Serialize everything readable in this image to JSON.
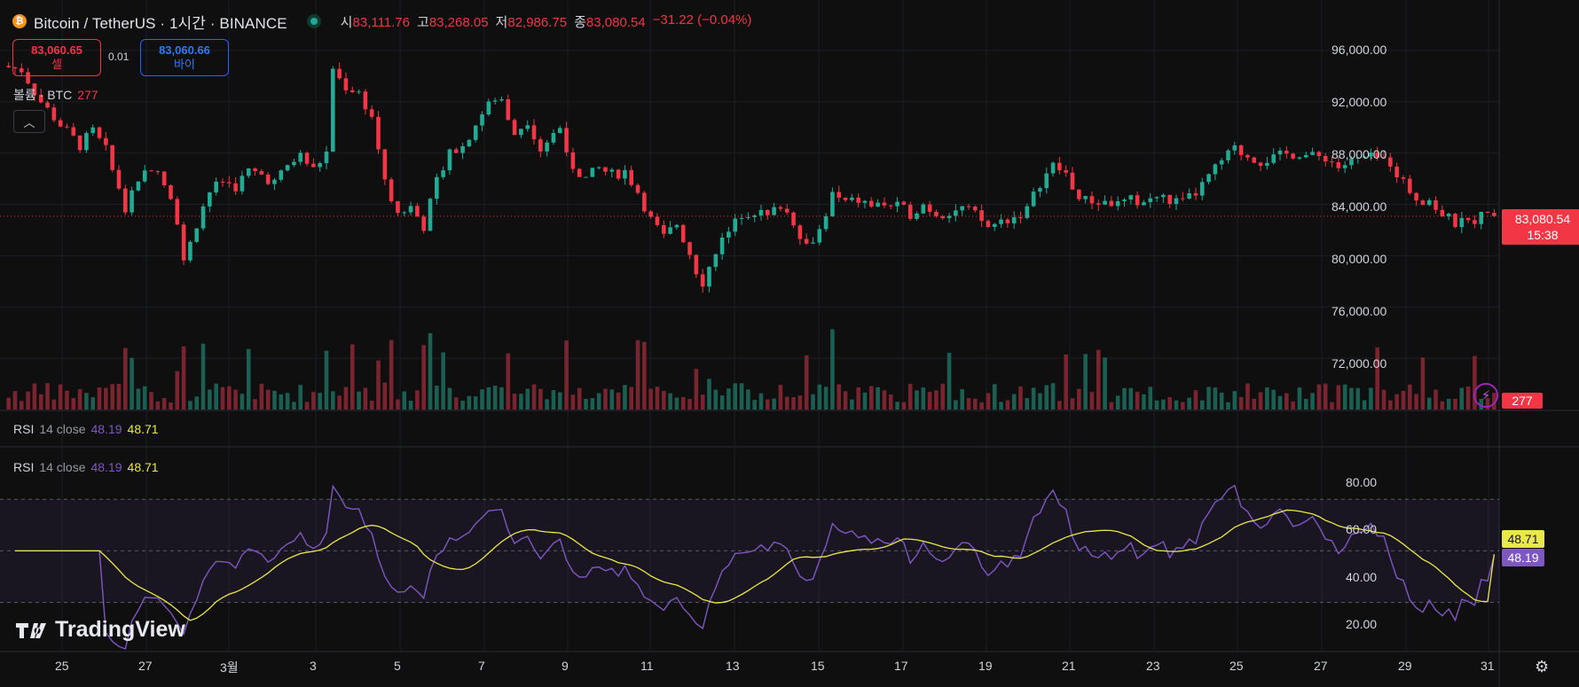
{
  "header": {
    "symbol": "Bitcoin / TetherUS · 1시간 · BINANCE",
    "ohlc": [
      {
        "k": "시",
        "v": "83,111.76"
      },
      {
        "k": "고",
        "v": "83,268.05"
      },
      {
        "k": "저",
        "v": "82,986.75"
      },
      {
        "k": "종",
        "v": "83,080.54"
      }
    ],
    "change": "−31.22 (−0.04%)"
  },
  "trade": {
    "sell_price": "83,060.65",
    "sell_label": "셀",
    "spread": "0.01",
    "buy_price": "83,060.66",
    "buy_label": "바이"
  },
  "volume_legend": {
    "label": "볼륨 · BTC",
    "value": "277"
  },
  "price_axis": [
    "96,000.00",
    "92,000.00",
    "88,000.00",
    "84,000.00",
    "80,000.00",
    "76,000.00",
    "72,000.00"
  ],
  "last_price": {
    "price": "83,080.54",
    "countdown": "15:38"
  },
  "volume_tag": "277",
  "rsi_panes": [
    {
      "name": "RSI",
      "params": "14 close",
      "rsi": "48.19",
      "ma": "48.71"
    },
    {
      "name": "RSI",
      "params": "14 close",
      "rsi": "48.19",
      "ma": "48.71"
    }
  ],
  "rsi_axis": [
    "80.00",
    "60.00",
    "40.00",
    "20.00"
  ],
  "rsi_tags": {
    "ma": "48.71",
    "rsi": "48.19"
  },
  "time_axis": [
    "25",
    "27",
    "3월",
    "3",
    "5",
    "7",
    "9",
    "11",
    "13",
    "15",
    "17",
    "19",
    "21",
    "23",
    "25",
    "27",
    "29",
    "31"
  ],
  "brand": "TradingView",
  "colors": {
    "up": "#22ab94",
    "down": "#f23645",
    "rsi": "#7e57c2",
    "rsi_ma": "#e9e84b",
    "background": "#0f0f0f"
  },
  "chart_data": {
    "type": "candlestick",
    "interval": "1h",
    "price_range": [
      68000,
      98000
    ],
    "path": [
      [
        0,
        94800
      ],
      [
        3,
        94500
      ],
      [
        6,
        92000
      ],
      [
        9,
        90200
      ],
      [
        12,
        88600
      ],
      [
        14,
        89700
      ],
      [
        16,
        88200
      ],
      [
        19,
        83500
      ],
      [
        21,
        86000
      ],
      [
        23,
        87000
      ],
      [
        25,
        85500
      ],
      [
        27,
        82800
      ],
      [
        28,
        79400
      ],
      [
        30,
        82500
      ],
      [
        32,
        85000
      ],
      [
        34,
        85800
      ],
      [
        36,
        85400
      ],
      [
        38,
        86600
      ],
      [
        40,
        86300
      ],
      [
        42,
        85700
      ],
      [
        44,
        87000
      ],
      [
        46,
        87800
      ],
      [
        48,
        86700
      ],
      [
        50,
        88000
      ],
      [
        51,
        94300
      ],
      [
        53,
        93200
      ],
      [
        55,
        92700
      ],
      [
        57,
        90800
      ],
      [
        59,
        86000
      ],
      [
        61,
        83300
      ],
      [
        63,
        83800
      ],
      [
        65,
        82300
      ],
      [
        67,
        85900
      ],
      [
        69,
        88200
      ],
      [
        71,
        88500
      ],
      [
        73,
        90300
      ],
      [
        75,
        91800
      ],
      [
        77,
        92200
      ],
      [
        79,
        89500
      ],
      [
        81,
        90600
      ],
      [
        83,
        88300
      ],
      [
        85,
        89500
      ],
      [
        86,
        90000
      ],
      [
        88,
        87000
      ],
      [
        90,
        86000
      ],
      [
        92,
        86800
      ],
      [
        94,
        86300
      ],
      [
        96,
        86600
      ],
      [
        98,
        85000
      ],
      [
        100,
        82800
      ],
      [
        102,
        81400
      ],
      [
        104,
        82500
      ],
      [
        106,
        80200
      ],
      [
        108,
        77500
      ],
      [
        110,
        80500
      ],
      [
        112,
        81800
      ],
      [
        114,
        83300
      ],
      [
        116,
        83500
      ],
      [
        118,
        83000
      ],
      [
        120,
        84000
      ],
      [
        122,
        82700
      ],
      [
        124,
        80800
      ],
      [
        126,
        82000
      ],
      [
        128,
        84700
      ],
      [
        130,
        84100
      ],
      [
        132,
        84300
      ],
      [
        134,
        83900
      ],
      [
        136,
        84000
      ],
      [
        138,
        83800
      ],
      [
        140,
        83300
      ],
      [
        142,
        84000
      ],
      [
        144,
        83300
      ],
      [
        146,
        83400
      ],
      [
        148,
        83700
      ],
      [
        150,
        83200
      ],
      [
        152,
        82200
      ],
      [
        154,
        82700
      ],
      [
        156,
        83000
      ],
      [
        158,
        83600
      ],
      [
        160,
        85700
      ],
      [
        162,
        87000
      ],
      [
        164,
        86400
      ],
      [
        166,
        84400
      ],
      [
        168,
        84200
      ],
      [
        170,
        84200
      ],
      [
        172,
        84000
      ],
      [
        174,
        84300
      ],
      [
        176,
        84200
      ],
      [
        178,
        84600
      ],
      [
        180,
        84300
      ],
      [
        182,
        84100
      ],
      [
        184,
        84900
      ],
      [
        186,
        86100
      ],
      [
        188,
        87400
      ],
      [
        190,
        88300
      ],
      [
        192,
        87800
      ],
      [
        194,
        87400
      ],
      [
        196,
        87600
      ],
      [
        198,
        87900
      ],
      [
        200,
        88000
      ],
      [
        202,
        87700
      ],
      [
        204,
        87700
      ],
      [
        206,
        86900
      ],
      [
        208,
        87300
      ],
      [
        210,
        87600
      ],
      [
        212,
        87600
      ],
      [
        214,
        87300
      ],
      [
        216,
        85700
      ],
      [
        218,
        84500
      ],
      [
        220,
        84300
      ],
      [
        222,
        83200
      ],
      [
        224,
        82500
      ],
      [
        226,
        82600
      ],
      [
        228,
        83100
      ],
      [
        230,
        83080
      ]
    ],
    "last_price": 83080.54,
    "rsi": {
      "period": 14,
      "source": "close",
      "value": 48.19,
      "ma_value": 48.71,
      "bands": [
        30,
        70
      ],
      "range": [
        12,
        90
      ]
    },
    "time_labels": [
      "25",
      "27",
      "3월",
      "3",
      "5",
      "7",
      "9",
      "11",
      "13",
      "15",
      "17",
      "19",
      "21",
      "23",
      "25",
      "27",
      "29",
      "31"
    ]
  }
}
